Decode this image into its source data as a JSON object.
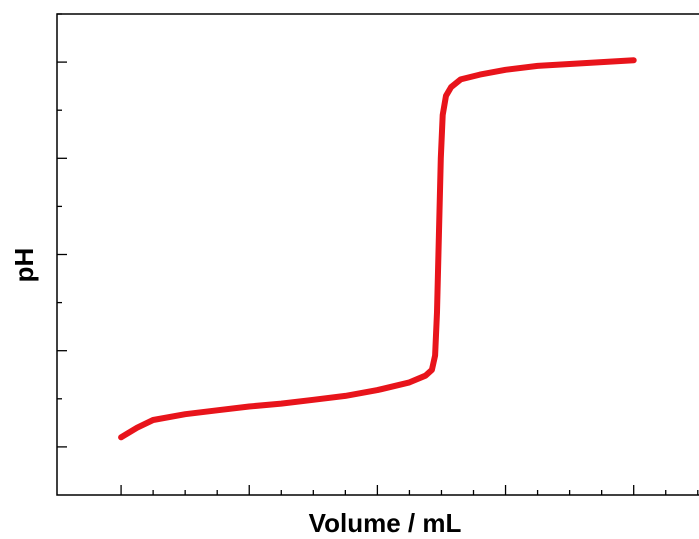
{
  "chart_data": {
    "type": "line",
    "title": "",
    "xlabel": "Volume / mL",
    "ylabel": "pH",
    "xlim": [
      -1,
      9.3
    ],
    "ylim": [
      0.5,
      5.5
    ],
    "x_major_ticks": [
      0,
      2,
      4,
      6,
      8
    ],
    "x_minor_ticks": [
      0.5,
      1,
      1.5,
      2.5,
      3,
      3.5,
      4.5,
      5,
      5.5,
      6.5,
      7,
      7.5,
      8.5,
      9
    ],
    "y_major_ticks": [
      1,
      2,
      3,
      4,
      5
    ],
    "y_minor_ticks": [
      1.5,
      2.5,
      3.5,
      4.5,
      5.5
    ],
    "tick_labels_shown": false,
    "grid": false,
    "legend": "none",
    "line_color": "#e8141b",
    "series": [
      {
        "values": [
          [
            0,
            1.1
          ],
          [
            0.25,
            1.2
          ],
          [
            0.5,
            1.28
          ],
          [
            1,
            1.34
          ],
          [
            1.5,
            1.38
          ],
          [
            2,
            1.42
          ],
          [
            2.5,
            1.45
          ],
          [
            3,
            1.49
          ],
          [
            3.5,
            1.53
          ],
          [
            4,
            1.59
          ],
          [
            4.5,
            1.67
          ],
          [
            4.75,
            1.74
          ],
          [
            4.85,
            1.8
          ],
          [
            4.9,
            1.95
          ],
          [
            4.93,
            2.4
          ],
          [
            4.96,
            3.2
          ],
          [
            4.99,
            4.0
          ],
          [
            5.02,
            4.45
          ],
          [
            5.07,
            4.65
          ],
          [
            5.15,
            4.74
          ],
          [
            5.3,
            4.82
          ],
          [
            5.6,
            4.87
          ],
          [
            6,
            4.92
          ],
          [
            6.5,
            4.96
          ],
          [
            7,
            4.98
          ],
          [
            7.5,
            5.0
          ],
          [
            8,
            5.02
          ]
        ]
      }
    ]
  }
}
